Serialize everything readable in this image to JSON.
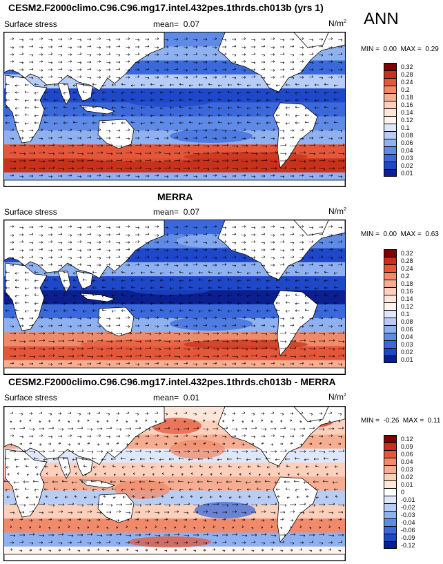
{
  "season": "ANN",
  "panels": [
    {
      "title": "CESM2.F2000climo.C96.C96.mg17.intel.432pes.1thrds.ch013b (yrs 1)",
      "variable": "Surface stress",
      "mean_label": "mean=",
      "mean_value": "0.07",
      "units_base": "N/m",
      "units_exp": "2",
      "min_label": "MIN =",
      "min_value": "0.00",
      "max_label": "MAX =",
      "max_value": "0.29",
      "colorbar": [
        "0.32",
        "0.28",
        "0.24",
        "0.2",
        "0.18",
        "0.16",
        "0.14",
        "0.12",
        "0.1",
        "0.08",
        "0.06",
        "0.04",
        "0.03",
        "0.02",
        "0.01"
      ],
      "colors": [
        "#7f0000",
        "#c8311b",
        "#e4573a",
        "#f08a6a",
        "#f6ae93",
        "#fbd0bc",
        "#fde7da",
        "#fff4ee",
        "#dfe8fb",
        "#b8cdf6",
        "#8fb1f0",
        "#5f8ae6",
        "#3b69db",
        "#1f48c8",
        "#0b1f8f"
      ]
    },
    {
      "title": "MERRA",
      "variable": "Surface stress",
      "mean_label": "mean=",
      "mean_value": "0.07",
      "units_base": "N/m",
      "units_exp": "2",
      "min_label": "MIN =",
      "min_value": "0.00",
      "max_label": "MAX =",
      "max_value": "0.63",
      "colorbar": [
        "0.32",
        "0.28",
        "0.24",
        "0.2",
        "0.18",
        "0.16",
        "0.14",
        "0.12",
        "0.1",
        "0.08",
        "0.06",
        "0.04",
        "0.03",
        "0.02",
        "0.01"
      ],
      "colors": [
        "#7f0000",
        "#c8311b",
        "#e4573a",
        "#f08a6a",
        "#f6ae93",
        "#fbd0bc",
        "#fde7da",
        "#fff4ee",
        "#dfe8fb",
        "#b8cdf6",
        "#8fb1f0",
        "#5f8ae6",
        "#3b69db",
        "#1f48c8",
        "#0b1f8f"
      ]
    },
    {
      "title": "CESM2.F2000climo.C96.C96.mg17.intel.432pes.1thrds.ch013b - MERRA",
      "variable": "Surface stress",
      "mean_label": "mean=",
      "mean_value": "0.01",
      "units_base": "N/m",
      "units_exp": "2",
      "min_label": "MIN =",
      "min_value": "-0.26",
      "max_label": "MAX =",
      "max_value": "0.11",
      "colorbar": [
        "0.12",
        "0.09",
        "0.06",
        "0.04",
        "0.03",
        "0.02",
        "0.01",
        "0",
        "-0.01",
        "-0.02",
        "-0.03",
        "-0.04",
        "-0.06",
        "-0.09",
        "-0.12"
      ],
      "colors": [
        "#7f0000",
        "#c8311b",
        "#e4573a",
        "#f08a6a",
        "#f6ae93",
        "#fbd0bc",
        "#fde7da",
        "#ffffff",
        "#dfe8fb",
        "#b8cdf6",
        "#8fb1f0",
        "#5f8ae6",
        "#3b69db",
        "#1f48c8",
        "#0b1f8f"
      ]
    }
  ],
  "chart_data": [
    {
      "type": "heatmap",
      "title": "CESM2.F2000climo.C96.C96.mg17.intel.432pes.1thrds.ch013b (yrs 1)",
      "variable": "Surface stress",
      "units": "N/m2",
      "mean": 0.07,
      "min": 0.0,
      "max": 0.29,
      "colorbar_levels": [
        0.01,
        0.02,
        0.03,
        0.04,
        0.06,
        0.08,
        0.1,
        0.12,
        0.14,
        0.16,
        0.18,
        0.2,
        0.24,
        0.28,
        0.32
      ]
    },
    {
      "type": "heatmap",
      "title": "MERRA",
      "variable": "Surface stress",
      "units": "N/m2",
      "mean": 0.07,
      "min": 0.0,
      "max": 0.63,
      "colorbar_levels": [
        0.01,
        0.02,
        0.03,
        0.04,
        0.06,
        0.08,
        0.1,
        0.12,
        0.14,
        0.16,
        0.18,
        0.2,
        0.24,
        0.28,
        0.32
      ]
    },
    {
      "type": "heatmap",
      "title": "CESM2.F2000climo.C96.C96.mg17.intel.432pes.1thrds.ch013b - MERRA",
      "variable": "Surface stress",
      "units": "N/m2",
      "mean": 0.01,
      "min": -0.26,
      "max": 0.11,
      "colorbar_levels": [
        -0.12,
        -0.09,
        -0.06,
        -0.04,
        -0.03,
        -0.02,
        -0.01,
        0,
        0.01,
        0.02,
        0.03,
        0.04,
        0.06,
        0.09,
        0.12
      ]
    }
  ]
}
